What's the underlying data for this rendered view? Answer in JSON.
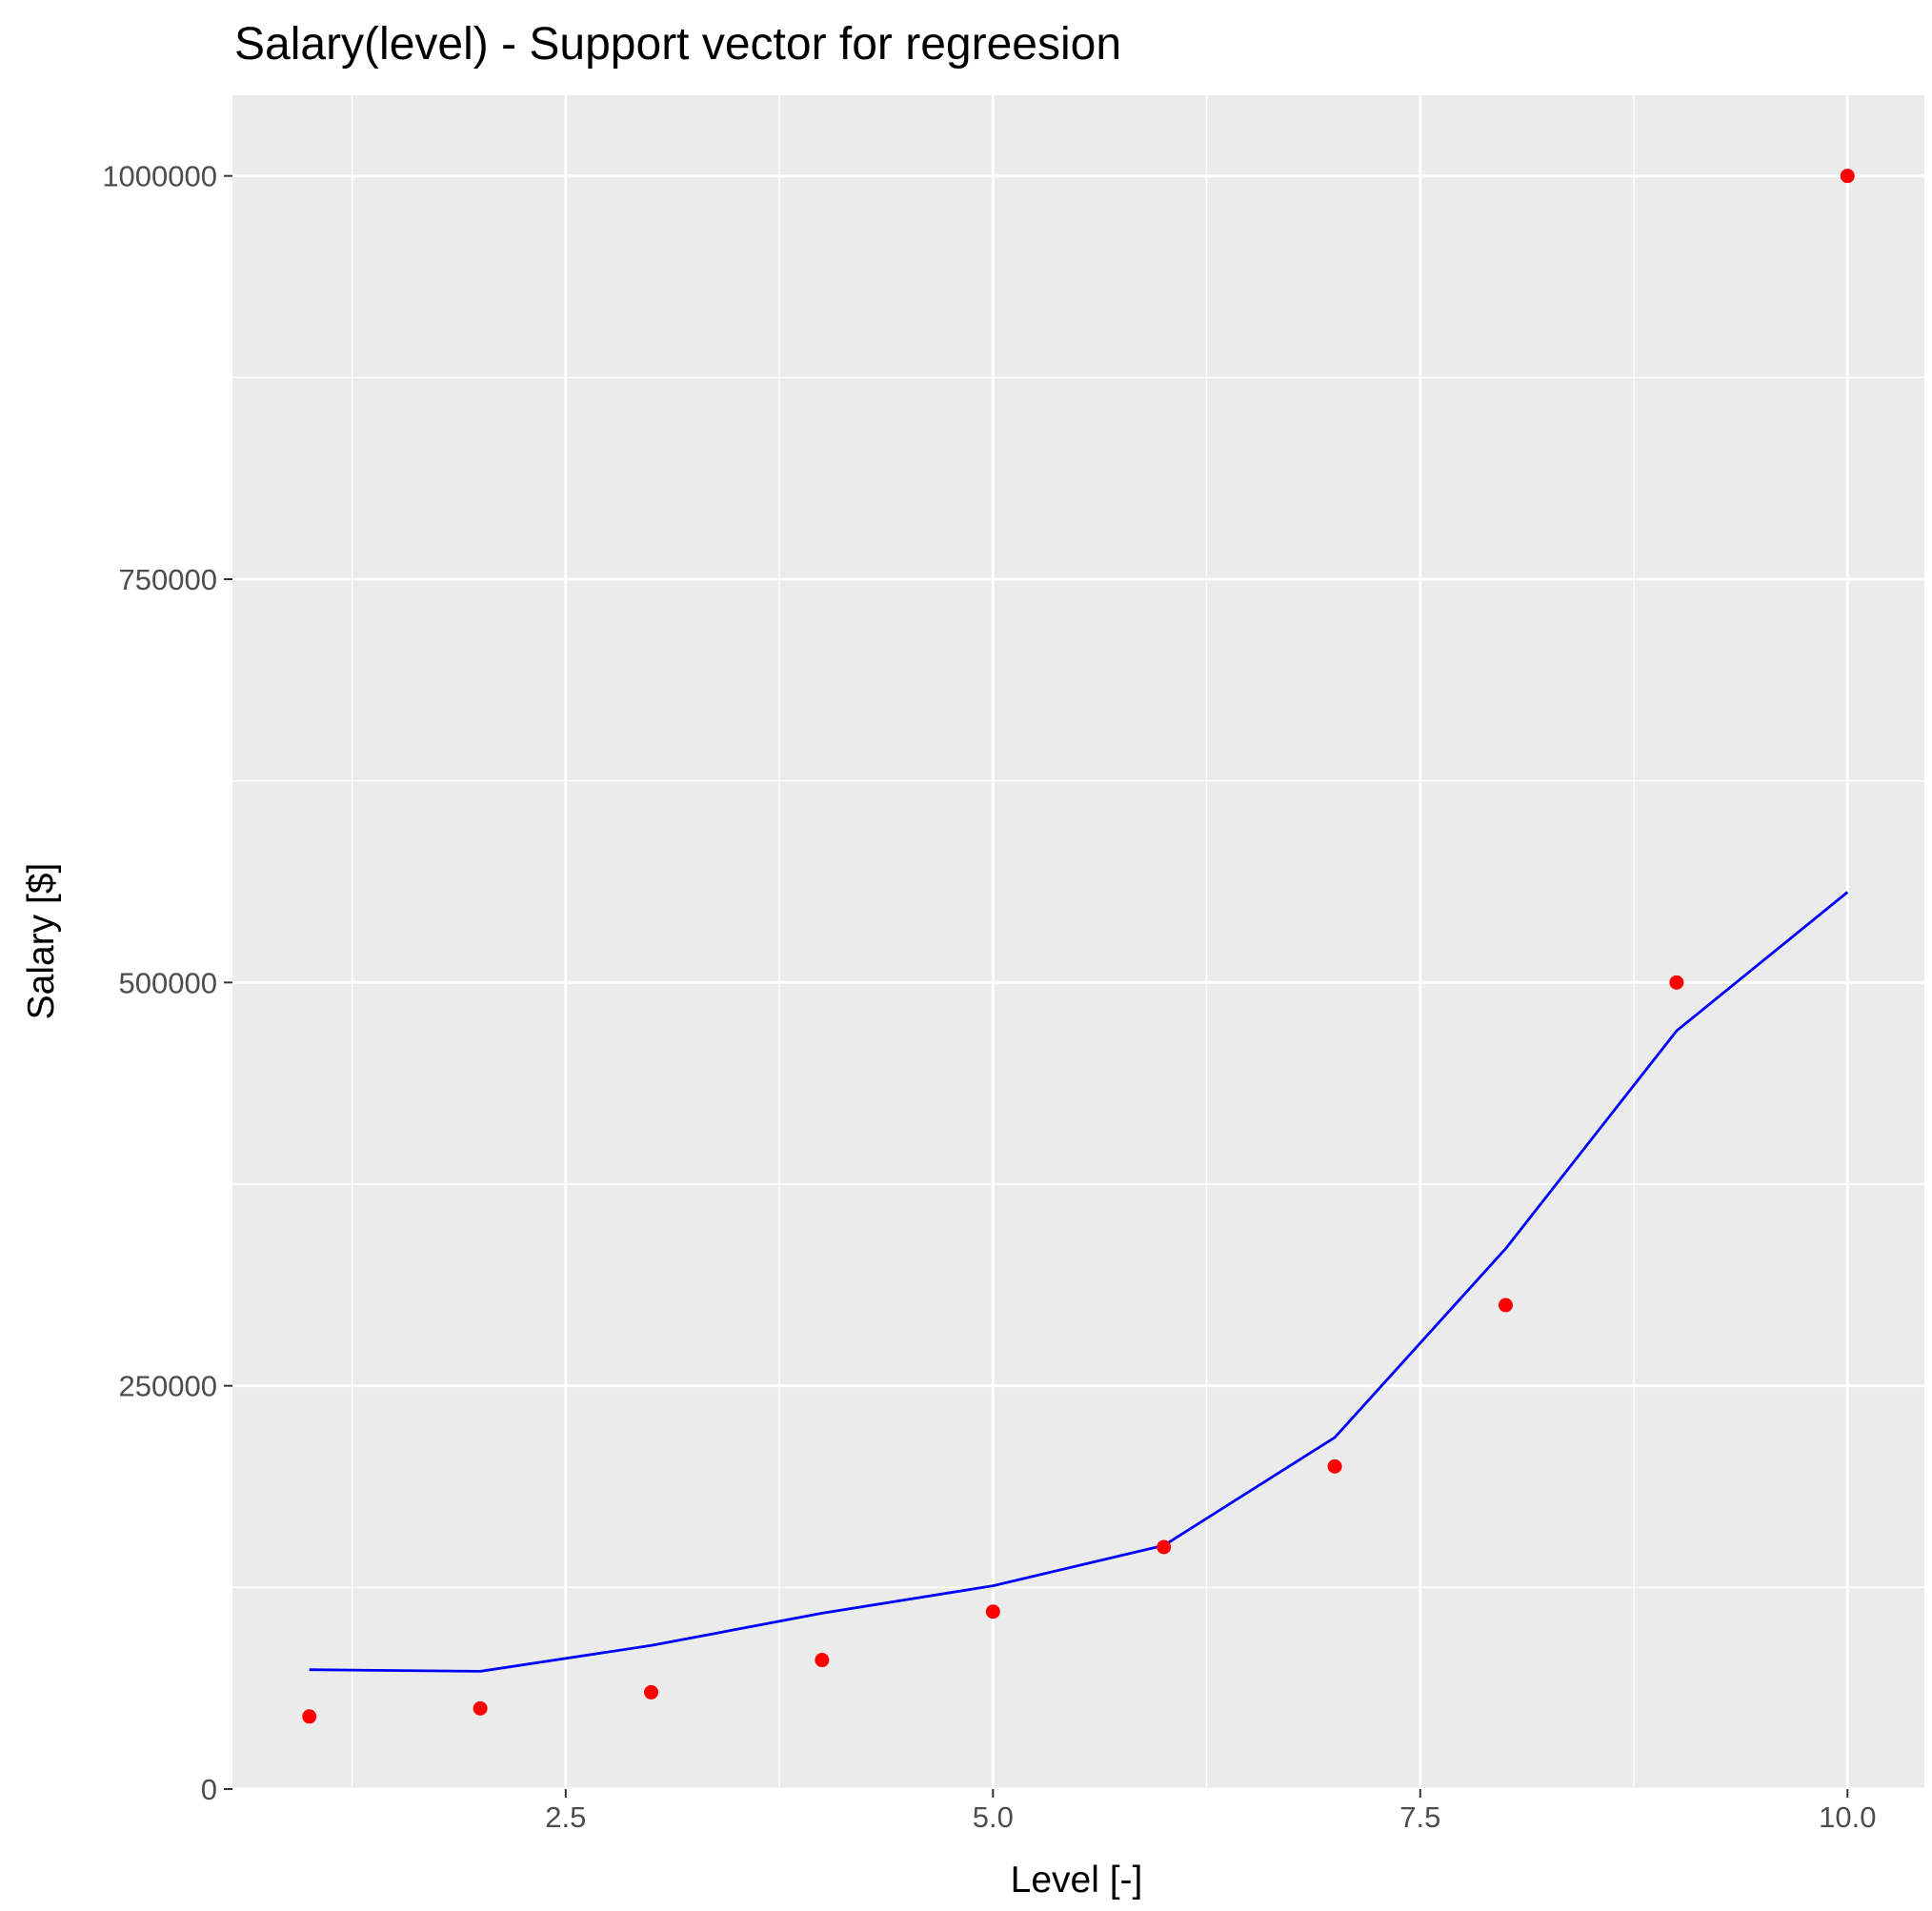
{
  "chart_data": {
    "type": "scatter",
    "title": "Salary(level) - Support vector for regreesion",
    "xlabel": "Level [-]",
    "ylabel": "Salary [$]",
    "xlim": [
      0.55,
      10.45
    ],
    "ylim": [
      0,
      1050000
    ],
    "x_ticks": [
      2.5,
      5.0,
      7.5,
      10.0
    ],
    "x_tick_labels": [
      "2.5",
      "5.0",
      "7.5",
      "10.0"
    ],
    "x_minor_ticks": [
      1.25,
      3.75,
      6.25,
      8.75
    ],
    "y_ticks": [
      0,
      250000,
      500000,
      750000,
      1000000
    ],
    "y_tick_labels": [
      "0",
      "250000",
      "500000",
      "750000",
      "1000000"
    ],
    "y_minor_ticks": [
      125000,
      375000,
      625000,
      875000
    ],
    "grid": true,
    "legend": "none",
    "series": [
      {
        "type": "scatter",
        "color": "#ff0000",
        "x": [
          1,
          2,
          3,
          4,
          5,
          6,
          7,
          8,
          9,
          10
        ],
        "y": [
          45000,
          50000,
          60000,
          80000,
          110000,
          150000,
          200000,
          300000,
          500000,
          1000000
        ]
      },
      {
        "type": "line",
        "color": "#0000ff",
        "x": [
          1,
          2,
          3,
          4,
          5,
          6,
          7,
          8,
          9,
          10
        ],
        "y": [
          74000,
          73000,
          89000,
          109000,
          126000,
          151000,
          218000,
          335000,
          470000,
          556000
        ]
      }
    ],
    "colors": {
      "panel_background": "#ebebeb",
      "grid": "#ffffff",
      "tick_text": "#4d4d4d",
      "axis_text": "#000000",
      "tick_mark": "#333333"
    }
  }
}
